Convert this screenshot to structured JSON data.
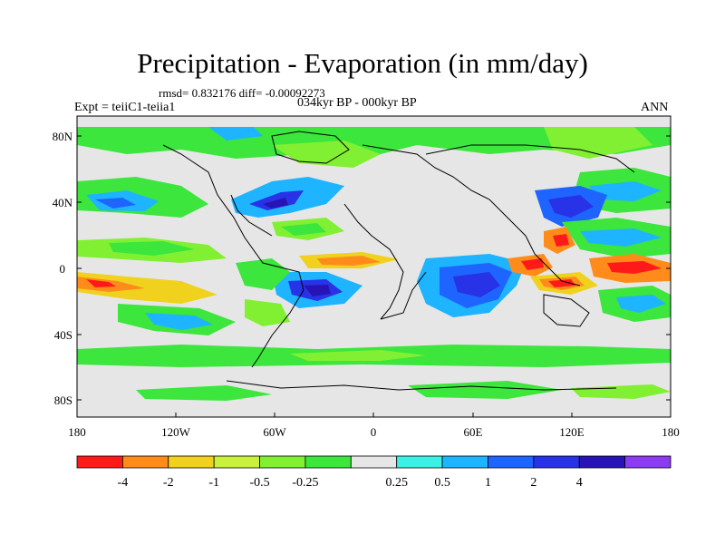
{
  "title": "Precipitation - Evaporation (in mm/day)",
  "stats": "rmsd= 0.832176 diff= -0.00092273",
  "experiment": "Expt = teiiC1-teiia1",
  "period": "034kyr BP - 000kyr BP",
  "season": "ANN",
  "lat_ticks": [
    "80N",
    "40N",
    "0",
    "40S",
    "80S"
  ],
  "lon_ticks": [
    "180",
    "120W",
    "60W",
    "0",
    "60E",
    "120E",
    "180"
  ],
  "colorbar": {
    "colors": [
      "#ff1a1a",
      "#ff8c1a",
      "#f0d21e",
      "#c8f03c",
      "#82f032",
      "#3ce63c",
      "#e6e6e6",
      "#3cf0e6",
      "#1eb4ff",
      "#1e64ff",
      "#2832e6",
      "#2814b4",
      "#8c3cf0"
    ],
    "labels": [
      "-4",
      "-2",
      "-1",
      "-0.5",
      "-0.25",
      "0.25",
      "0.5",
      "1",
      "2",
      "4"
    ]
  },
  "chart_data": {
    "type": "heatmap",
    "title": "Precipitation - Evaporation (in mm/day)",
    "xlim": [
      -180,
      180
    ],
    "ylim": [
      -90,
      90
    ],
    "levels": [
      -4,
      -2,
      -1,
      -0.5,
      -0.25,
      0.25,
      0.5,
      1,
      2,
      4
    ],
    "background_color": "#e6e6e6"
  }
}
